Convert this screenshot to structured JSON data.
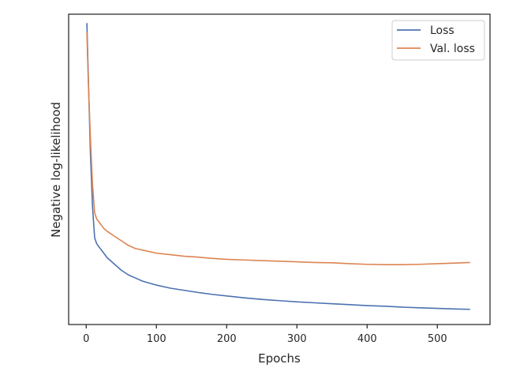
{
  "chart_data": {
    "type": "line",
    "title": "",
    "xlabel": "Epochs",
    "ylabel": "Negative log-likelihood",
    "xlim": [
      -25,
      575
    ],
    "ylim": [
      0,
      100
    ],
    "y_tick_labels_shown": false,
    "grid": false,
    "legend_position": "top-right",
    "x_ticks": [
      0,
      100,
      200,
      300,
      400,
      500
    ],
    "x_tick_labels": [
      "0",
      "100",
      "200",
      "300",
      "400",
      "500"
    ],
    "series": [
      {
        "name": "Loss",
        "color": "#4c72b0",
        "x": [
          1,
          3,
          6,
          9,
          12,
          15,
          20,
          25,
          30,
          40,
          50,
          60,
          70,
          80,
          100,
          120,
          140,
          160,
          180,
          200,
          225,
          250,
          275,
          300,
          325,
          350,
          375,
          400,
          425,
          450,
          475,
          500,
          525,
          546
        ],
        "y": [
          97.0,
          80.0,
          55.0,
          38.0,
          28.0,
          26.0,
          24.5,
          23.0,
          21.5,
          19.5,
          17.5,
          16.0,
          15.0,
          14.0,
          12.7,
          11.7,
          11.0,
          10.3,
          9.7,
          9.2,
          8.6,
          8.1,
          7.7,
          7.3,
          7.0,
          6.7,
          6.4,
          6.1,
          5.9,
          5.6,
          5.4,
          5.2,
          5.0,
          4.9
        ]
      },
      {
        "name": "Val. loss",
        "color": "#dd8452",
        "x": [
          1,
          3,
          6,
          9,
          12,
          15,
          20,
          25,
          30,
          40,
          50,
          60,
          70,
          80,
          100,
          120,
          140,
          160,
          180,
          200,
          225,
          250,
          275,
          300,
          325,
          350,
          375,
          400,
          425,
          450,
          475,
          500,
          525,
          546
        ],
        "y": [
          94.0,
          78.0,
          60.0,
          45.0,
          36.0,
          34.0,
          32.5,
          31.0,
          30.0,
          28.5,
          27.0,
          25.5,
          24.5,
          24.0,
          23.0,
          22.5,
          22.0,
          21.7,
          21.3,
          21.0,
          20.8,
          20.6,
          20.4,
          20.2,
          20.0,
          19.9,
          19.6,
          19.4,
          19.3,
          19.3,
          19.4,
          19.6,
          19.8,
          20.0
        ]
      }
    ]
  }
}
